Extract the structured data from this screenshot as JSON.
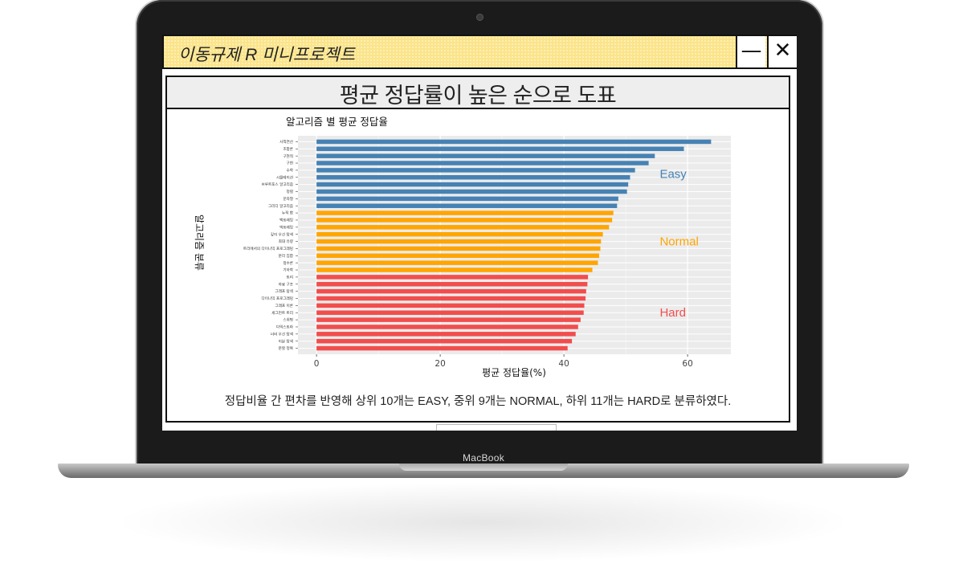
{
  "device": {
    "brand_label": "MacBook"
  },
  "window": {
    "title": "이동규제 R 미니프로젝트",
    "minimize_glyph": "—",
    "close_glyph": "✕",
    "bar_color": "#fbe489"
  },
  "panel": {
    "heading": "평균 정답률이 높은 순으로 도표",
    "caption": "정답비율 간 편차를 반영해 상위 10개는 EASY, 중위 9개는 NORMAL, 하위 11개는 HARD로 분류하였다."
  },
  "chart_data": {
    "type": "bar",
    "orientation": "horizontal",
    "title": "알고리즘 별 평균 정답율",
    "xlabel": "평균 정답율(%)",
    "ylabel": "알고리즘 분류",
    "xlim": [
      -3,
      67
    ],
    "xticks": [
      0,
      20,
      40,
      60
    ],
    "grid": true,
    "categories": [
      "사칙연산",
      "조합론",
      "구현적",
      "구현",
      "수학",
      "시뮬레이션",
      "브루트포스 알고리즘",
      "정렬",
      "문자열",
      "그리디 알고리즘",
      "누적 합",
      "백트래킹",
      "덱트래킹",
      "깊이 우선 탐색",
      "최대 유량",
      "트리에서의 다이나믹 프로그래밍",
      "분리 집합",
      "정수론",
      "기하학",
      "트리",
      "자료 구조",
      "그래프 탐색",
      "다이나믹 프로그래밍",
      "그래프 이론",
      "세그먼트 트리",
      "스위핑",
      "다익스트라",
      "너비 우선 탐색",
      "이분 탐색",
      "분할 정복"
    ],
    "values": [
      63.8,
      59.4,
      54.7,
      53.7,
      51.5,
      50.7,
      50.4,
      50.2,
      48.8,
      48.6,
      48.0,
      47.8,
      47.3,
      46.3,
      46.0,
      45.9,
      45.7,
      45.5,
      44.6,
      43.9,
      43.8,
      43.6,
      43.5,
      43.3,
      43.2,
      42.7,
      42.3,
      41.9,
      41.3,
      40.6
    ],
    "groups": [
      {
        "name": "Easy",
        "count": 10,
        "color": "#4682b4"
      },
      {
        "name": "Normal",
        "count": 9,
        "color": "#ffa500"
      },
      {
        "name": "Hard",
        "count": 11,
        "color": "#f24d4d"
      }
    ]
  }
}
